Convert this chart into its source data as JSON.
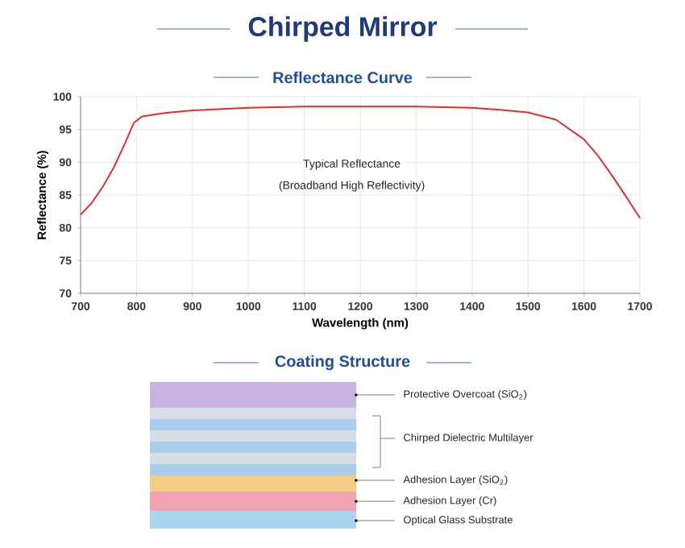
{
  "chart_data": [
    {
      "type": "line",
      "title": "Chirped Mirror",
      "subtitle": "Reflectance Curve",
      "xlabel": "Wavelength (nm)",
      "ylabel": "Reflectance (%)",
      "x": [
        700,
        720,
        740,
        760,
        780,
        795,
        810,
        850,
        900,
        1000,
        1100,
        1200,
        1300,
        1400,
        1450,
        1500,
        1550,
        1600,
        1625,
        1650,
        1675,
        1700
      ],
      "values": [
        82,
        83.8,
        86.3,
        89.3,
        93,
        96,
        97,
        97.5,
        97.9,
        98.3,
        98.5,
        98.5,
        98.5,
        98.3,
        98,
        97.6,
        96.5,
        93.5,
        91,
        88,
        84.8,
        81.5
      ],
      "color": "#e03131",
      "xlim": [
        700,
        1700
      ],
      "ylim": [
        70,
        100
      ],
      "xticks": [
        700,
        800,
        900,
        1000,
        1100,
        1200,
        1300,
        1400,
        1500,
        1600,
        1700
      ],
      "yticks": [
        70,
        75,
        80,
        85,
        90,
        95,
        100
      ],
      "grid": true,
      "annotations": [
        "Typical Reflectance",
        "(Broadband High Reflectivity)"
      ]
    },
    {
      "type": "other",
      "title": "Coating Structure",
      "annotations": [
        "Protective Overcoat (SiO$_{2}$)",
        "Chirped Dielectric Multilayer",
        "Adhesion Layer (SiO$_{2}$)",
        "Adhesion Layer (Cr)",
        "Optical Glass Substrate"
      ]
    }
  ]
}
